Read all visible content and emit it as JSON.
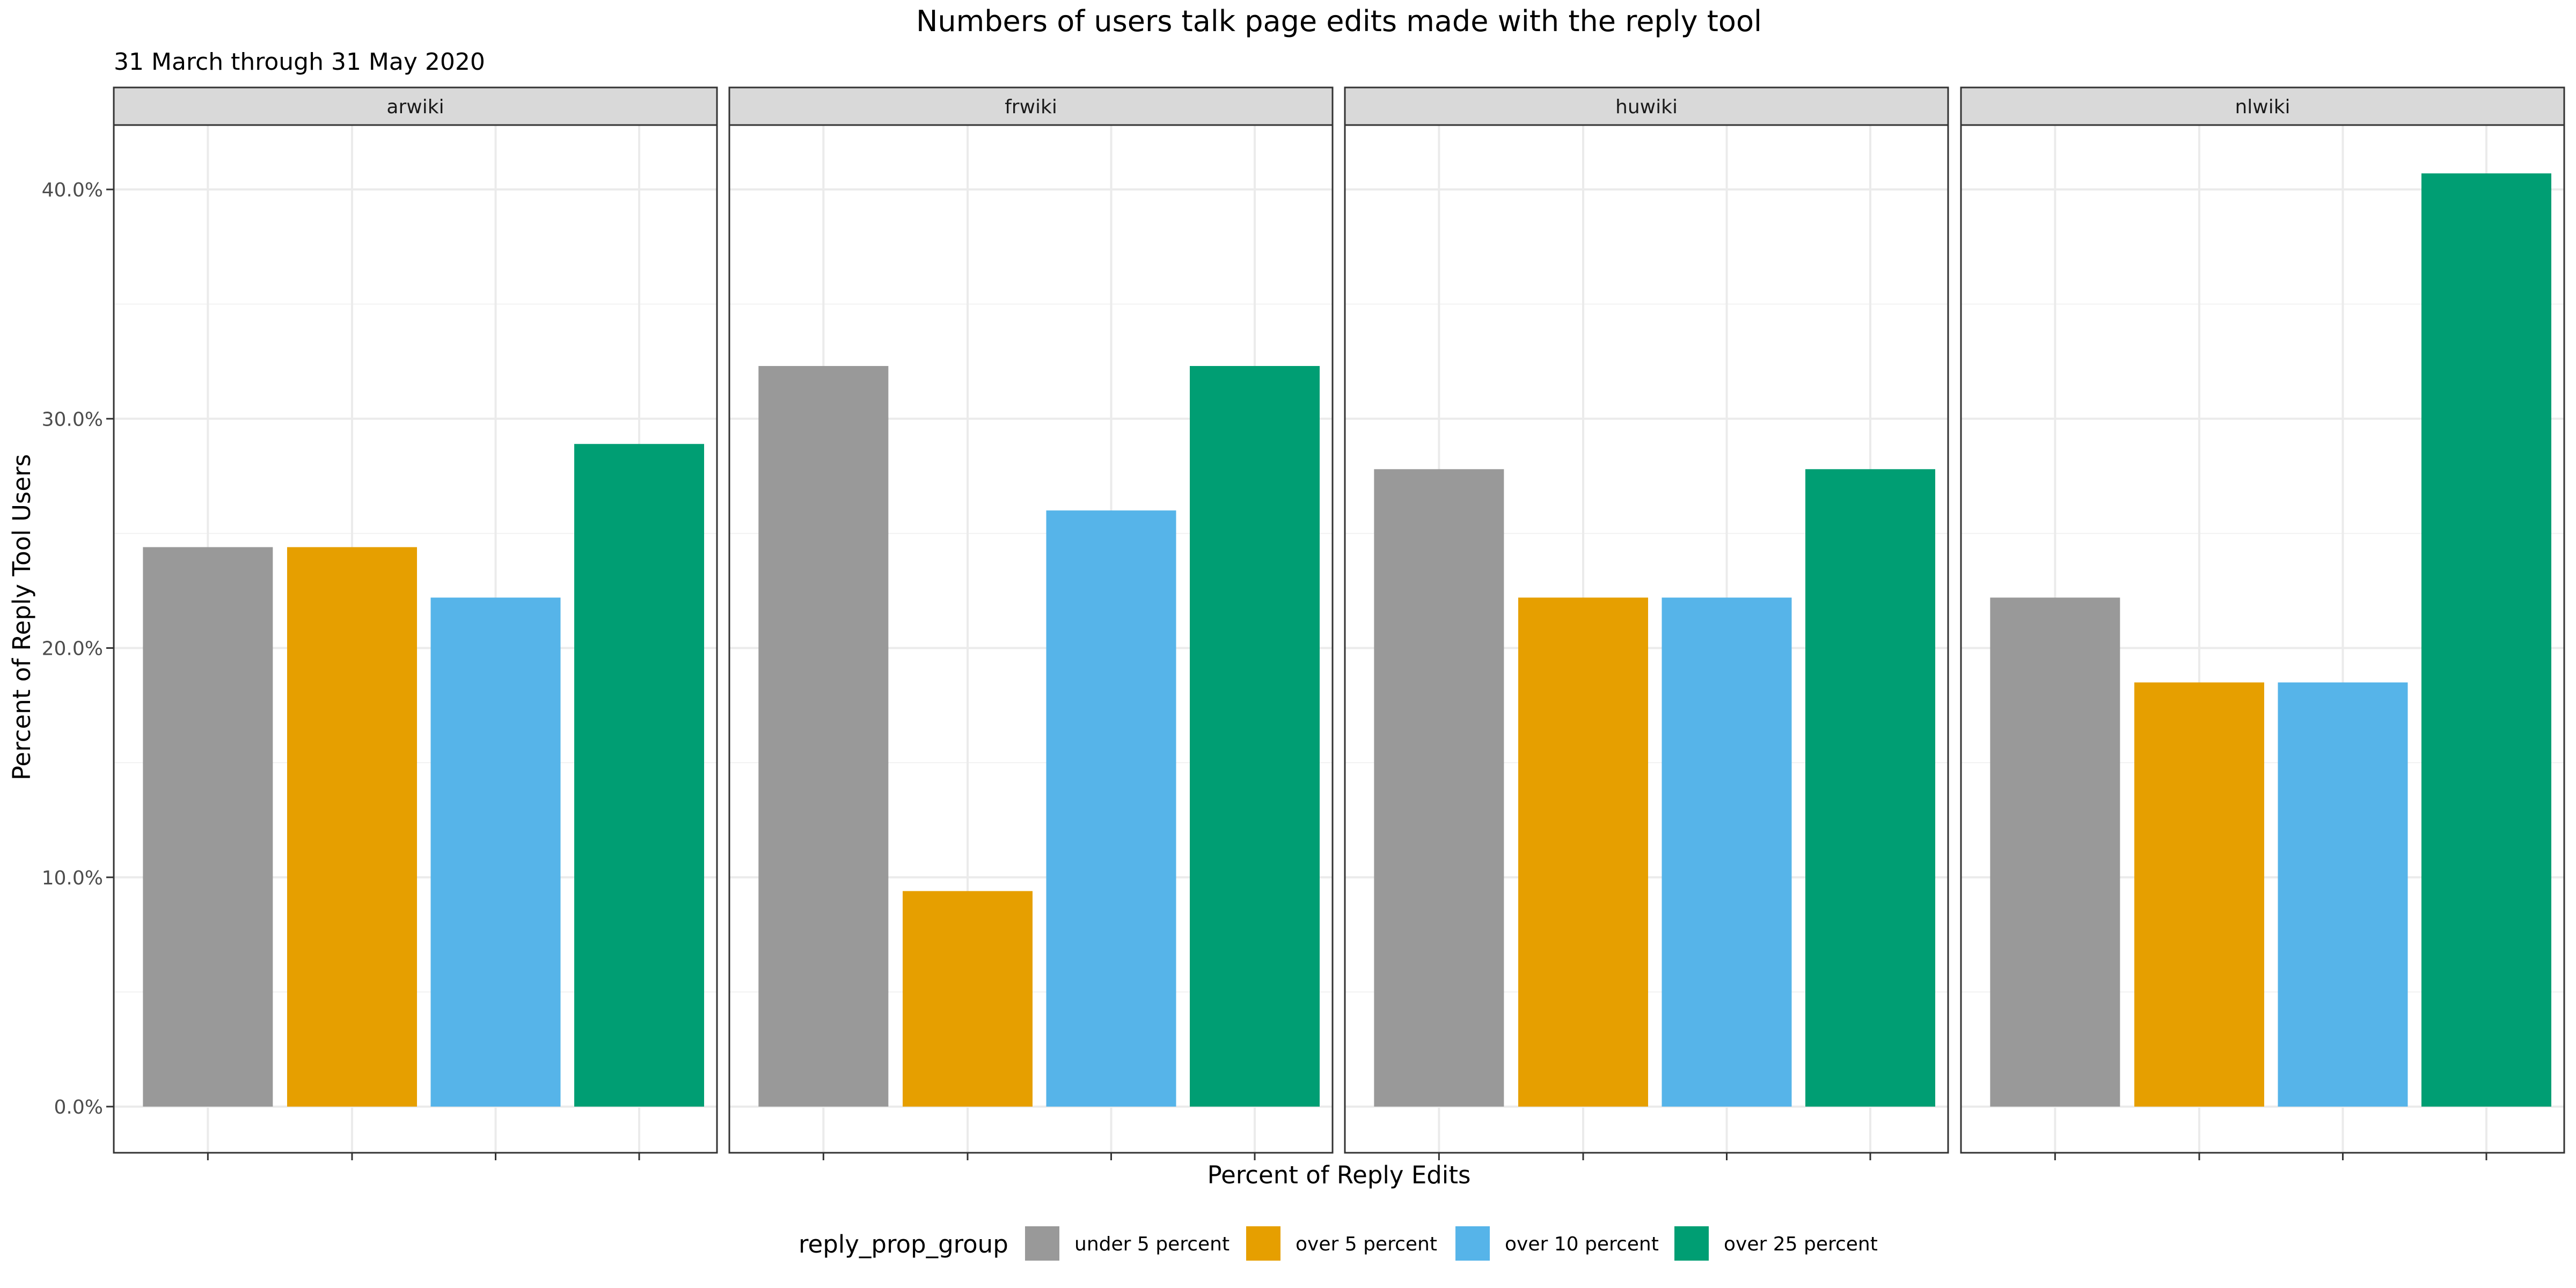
{
  "chart_data": {
    "type": "bar",
    "title": "Numbers of users talk page edits made with the reply tool",
    "subtitle": "31 March through 31 May 2020",
    "xlabel": "Percent of Reply Edits",
    "ylabel": "Percent of Reply Tool Users",
    "ylim": [
      0,
      44
    ],
    "y_ticks": [
      0,
      10,
      20,
      30,
      40
    ],
    "y_tick_labels": [
      "0.0%",
      "10.0%",
      "20.0%",
      "30.0%",
      "40.0%"
    ],
    "grid": true,
    "legend_position": "bottom",
    "legend_title": "reply_prop_group",
    "categories": [
      "under 5 percent",
      "over 5 percent",
      "over 10 percent",
      "over 25 percent"
    ],
    "colors": [
      "#999999",
      "#E69F00",
      "#56B4E9",
      "#009E73"
    ],
    "panels": [
      {
        "name": "arwiki",
        "values": [
          24.4,
          24.4,
          22.2,
          28.9
        ]
      },
      {
        "name": "frwiki",
        "values": [
          32.3,
          9.4,
          26.0,
          32.3
        ]
      },
      {
        "name": "huwiki",
        "values": [
          27.8,
          22.2,
          22.2,
          27.8
        ]
      },
      {
        "name": "nlwiki",
        "values": [
          22.2,
          18.5,
          18.5,
          40.7
        ]
      }
    ]
  }
}
